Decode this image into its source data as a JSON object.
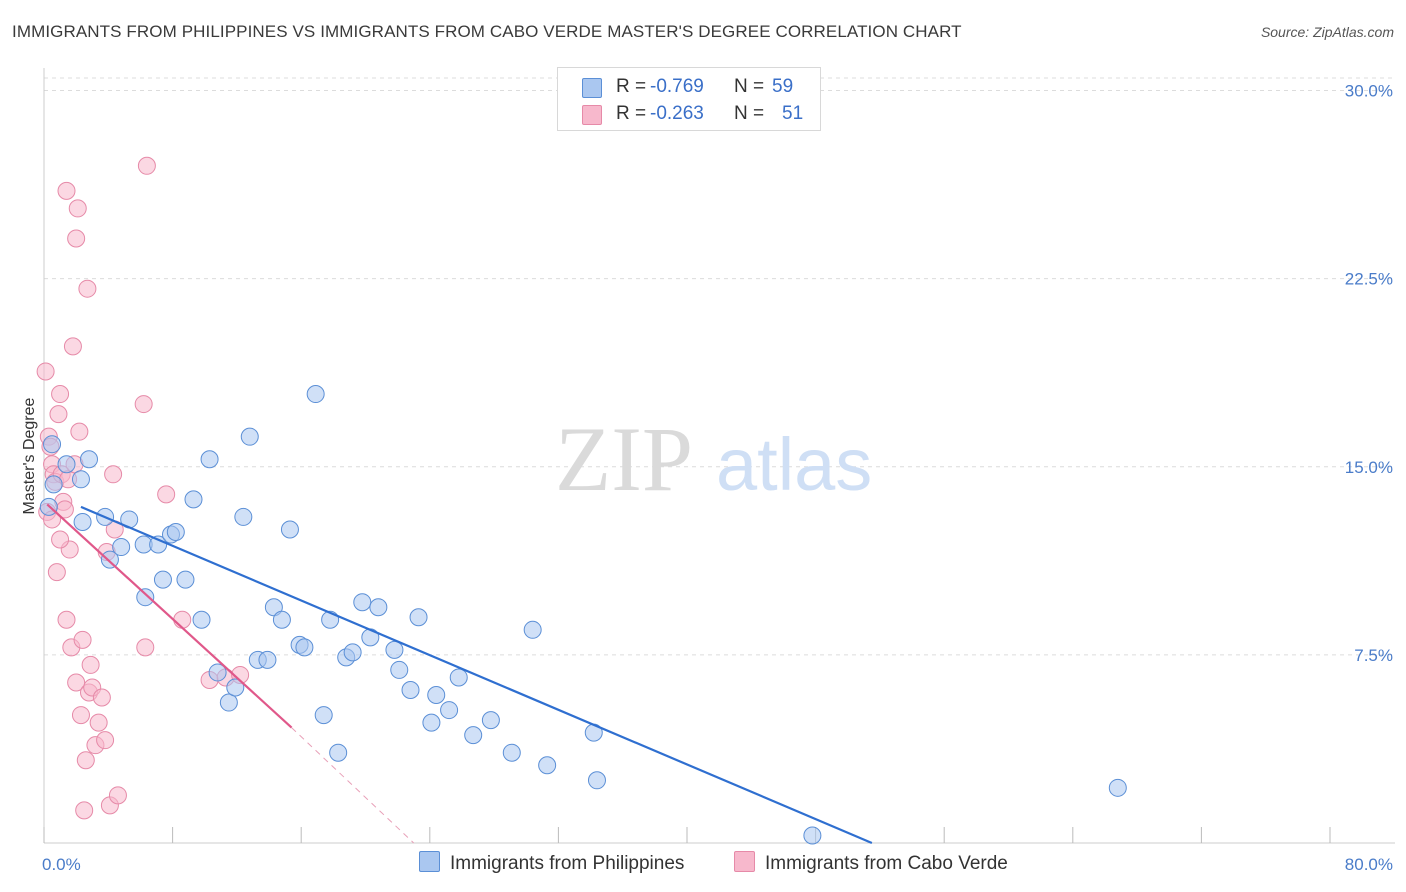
{
  "title": "IMMIGRANTS FROM PHILIPPINES VS IMMIGRANTS FROM CABO VERDE MASTER'S DEGREE CORRELATION CHART",
  "source": "Source: ZipAtlas.com",
  "watermark": {
    "zip": "ZIP",
    "atlas": "atlas"
  },
  "colors": {
    "blue_fill": "#aac7f0",
    "blue_stroke": "#5b8fd6",
    "blue_line": "#2f6fd0",
    "pink_fill": "#f7b8cc",
    "pink_stroke": "#e68aa8",
    "pink_line": "#e0588a",
    "grid": "#dcdcdc",
    "tick_text": "#4a7cc9"
  },
  "legend": {
    "rows": [
      {
        "r_label": "R =",
        "r_value": "-0.769",
        "n_label": "N =",
        "n_value": "59"
      },
      {
        "r_label": "R =",
        "r_value": "-0.263",
        "n_label": "N =",
        "n_value": "51"
      }
    ]
  },
  "bottom_legend": {
    "philippines": "Immigrants from Philippines",
    "cabo_verde": "Immigrants from Cabo Verde"
  },
  "chart_data": {
    "type": "scatter",
    "title": "IMMIGRANTS FROM PHILIPPINES VS IMMIGRANTS FROM CABO VERDE MASTER'S DEGREE CORRELATION CHART",
    "xlabel": "",
    "ylabel": "Master's Degree",
    "xlim": [
      0,
      80
    ],
    "ylim": [
      0,
      30.5
    ],
    "x_tick_labels": [
      "0.0%",
      "80.0%"
    ],
    "y_ticks": [
      7.5,
      15.0,
      22.5,
      30.0
    ],
    "y_tick_labels": [
      "7.5%",
      "15.0%",
      "22.5%",
      "30.0%"
    ],
    "legend_position": "top-center",
    "series": [
      {
        "name": "Immigrants from Philippines",
        "color": "blue",
        "points": [
          [
            0.5,
            15.9
          ],
          [
            1.4,
            15.1
          ],
          [
            2.3,
            14.5
          ],
          [
            2.8,
            15.3
          ],
          [
            2.4,
            12.8
          ],
          [
            3.8,
            13.0
          ],
          [
            4.1,
            11.3
          ],
          [
            4.8,
            11.8
          ],
          [
            5.3,
            12.9
          ],
          [
            6.2,
            11.9
          ],
          [
            6.3,
            9.8
          ],
          [
            7.1,
            11.9
          ],
          [
            7.4,
            10.5
          ],
          [
            7.9,
            12.3
          ],
          [
            8.2,
            12.4
          ],
          [
            8.8,
            10.5
          ],
          [
            9.3,
            13.7
          ],
          [
            9.8,
            8.9
          ],
          [
            10.3,
            15.3
          ],
          [
            10.8,
            6.8
          ],
          [
            11.5,
            5.6
          ],
          [
            11.9,
            6.2
          ],
          [
            12.4,
            13.0
          ],
          [
            12.8,
            16.2
          ],
          [
            13.3,
            7.3
          ],
          [
            13.9,
            7.3
          ],
          [
            14.3,
            9.4
          ],
          [
            14.8,
            8.9
          ],
          [
            15.3,
            12.5
          ],
          [
            15.9,
            7.9
          ],
          [
            16.2,
            7.8
          ],
          [
            16.9,
            17.9
          ],
          [
            17.4,
            5.1
          ],
          [
            17.8,
            8.9
          ],
          [
            18.3,
            3.6
          ],
          [
            18.8,
            7.4
          ],
          [
            19.2,
            7.6
          ],
          [
            19.8,
            9.6
          ],
          [
            20.3,
            8.2
          ],
          [
            20.8,
            9.4
          ],
          [
            21.8,
            7.7
          ],
          [
            22.1,
            6.9
          ],
          [
            22.8,
            6.1
          ],
          [
            23.3,
            9.0
          ],
          [
            24.1,
            4.8
          ],
          [
            24.4,
            5.9
          ],
          [
            25.2,
            5.3
          ],
          [
            25.8,
            6.6
          ],
          [
            26.7,
            4.3
          ],
          [
            27.8,
            4.9
          ],
          [
            29.1,
            3.6
          ],
          [
            30.4,
            8.5
          ],
          [
            31.3,
            3.1
          ],
          [
            34.2,
            4.4
          ],
          [
            34.4,
            2.5
          ],
          [
            66.8,
            2.2
          ],
          [
            47.8,
            0.3
          ],
          [
            0.6,
            14.3
          ],
          [
            0.3,
            13.4
          ]
        ],
        "trend": {
          "x1": 2.3,
          "y1": 13.4,
          "x2": 51.5,
          "y2": 0.0
        }
      },
      {
        "name": "Immigrants from Cabo Verde",
        "color": "pink",
        "points": [
          [
            0.1,
            18.8
          ],
          [
            0.3,
            16.2
          ],
          [
            0.4,
            15.8
          ],
          [
            0.5,
            15.1
          ],
          [
            0.6,
            14.7
          ],
          [
            0.7,
            14.4
          ],
          [
            0.8,
            10.8
          ],
          [
            0.9,
            17.1
          ],
          [
            1.0,
            17.9
          ],
          [
            1.1,
            14.7
          ],
          [
            1.2,
            13.6
          ],
          [
            1.3,
            13.3
          ],
          [
            1.4,
            26.0
          ],
          [
            1.4,
            8.9
          ],
          [
            1.5,
            14.5
          ],
          [
            1.6,
            11.7
          ],
          [
            1.7,
            7.8
          ],
          [
            1.8,
            19.8
          ],
          [
            1.9,
            15.1
          ],
          [
            2.0,
            24.1
          ],
          [
            2.0,
            6.4
          ],
          [
            2.1,
            25.3
          ],
          [
            2.2,
            16.4
          ],
          [
            2.3,
            5.1
          ],
          [
            2.4,
            8.1
          ],
          [
            2.5,
            1.3
          ],
          [
            2.6,
            3.3
          ],
          [
            2.7,
            22.1
          ],
          [
            2.8,
            6.0
          ],
          [
            2.9,
            7.1
          ],
          [
            3.0,
            6.2
          ],
          [
            3.2,
            3.9
          ],
          [
            3.4,
            4.8
          ],
          [
            3.6,
            5.8
          ],
          [
            3.8,
            4.1
          ],
          [
            3.9,
            11.6
          ],
          [
            4.1,
            1.5
          ],
          [
            4.3,
            14.7
          ],
          [
            4.4,
            12.5
          ],
          [
            4.6,
            1.9
          ],
          [
            6.2,
            17.5
          ],
          [
            6.3,
            7.8
          ],
          [
            6.4,
            27.0
          ],
          [
            7.6,
            13.9
          ],
          [
            8.6,
            8.9
          ],
          [
            10.3,
            6.5
          ],
          [
            11.3,
            6.6
          ],
          [
            12.2,
            6.7
          ],
          [
            0.2,
            13.2
          ],
          [
            0.5,
            12.9
          ],
          [
            1.0,
            12.1
          ]
        ],
        "trend": {
          "x1": 0.2,
          "y1": 13.5,
          "x2": 15.4,
          "y2": 4.6
        },
        "trend_dashed": {
          "x1": 15.4,
          "y1": 4.6,
          "x2": 23.0,
          "y2": 0.0
        }
      }
    ]
  }
}
